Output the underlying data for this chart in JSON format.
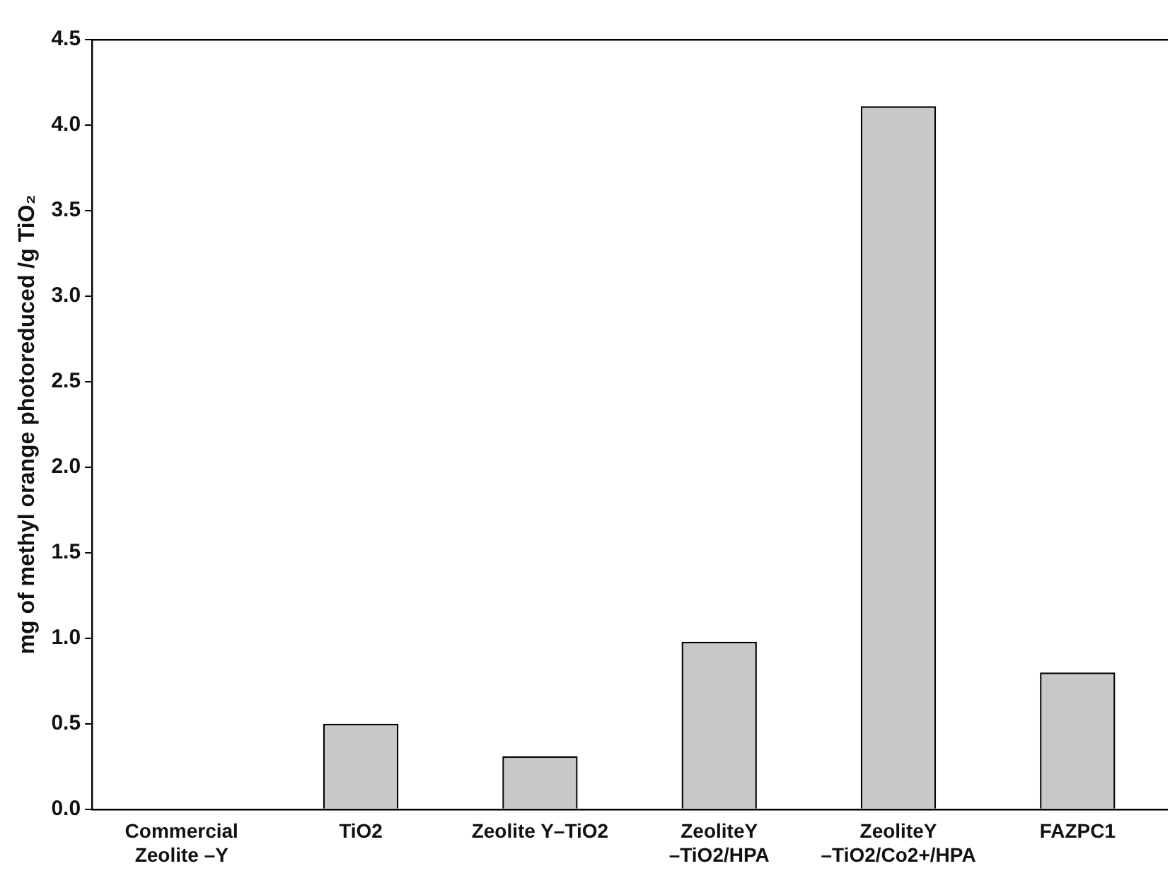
{
  "chart_data": {
    "type": "bar",
    "ylabel": "mg of methyl orange photoreduced /g TiO₂",
    "categories": [
      "Commercial\nZeolite –Y",
      "TiO2",
      "Zeolite Y–TiO2",
      "ZeoliteY\n–TiO2/HPA",
      "ZeoliteY\n–TiO2/Co2+/HPA",
      "FAZPC1"
    ],
    "values": [
      0,
      0.5,
      0.31,
      0.98,
      4.11,
      0.8
    ],
    "color": "#c8c8c8",
    "ylim": [
      0,
      4.5
    ],
    "yticks": [
      {
        "value": 0,
        "label": "0.0"
      },
      {
        "value": 0.5,
        "label": "0.5"
      },
      {
        "value": 1,
        "label": "1.0"
      },
      {
        "value": 1.5,
        "label": "1.5"
      },
      {
        "value": 2,
        "label": "2.0"
      },
      {
        "value": 2.5,
        "label": "2.5"
      },
      {
        "value": 3,
        "label": "3.0"
      },
      {
        "value": 3.5,
        "label": "3.5"
      },
      {
        "value": 4,
        "label": "4.0"
      },
      {
        "value": 4.5,
        "label": "4.5"
      }
    ],
    "grid": false,
    "legend": false
  }
}
